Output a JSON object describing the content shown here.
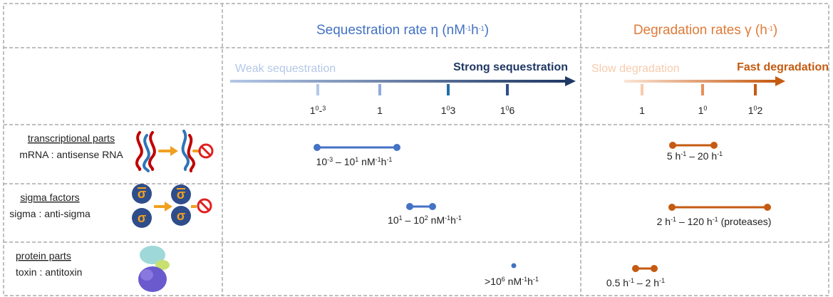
{
  "header": {
    "sequestration_title": [
      [
        "Sequestration rate η (nM",
        "-1"
      ],
      [
        "h",
        "-1"
      ],
      [
        ")"
      ]
    ],
    "degradation_title": [
      [
        "Degradation rates γ (h",
        "-1"
      ],
      [
        ")"
      ]
    ]
  },
  "scales": {
    "sequestration": {
      "weak": "Weak sequestration",
      "strong": "Strong sequestration",
      "ticks": [
        [
          "10",
          "-3"
        ],
        [
          "1"
        ],
        [
          "10",
          "3"
        ],
        [
          "10",
          "6"
        ]
      ]
    },
    "degradation": {
      "slow": "Slow degradation",
      "fast": "Fast degradation",
      "ticks": [
        [
          "1"
        ],
        [
          "10"
        ],
        [
          "10",
          "2"
        ]
      ]
    }
  },
  "rows": [
    {
      "name": "transcriptional parts",
      "pair": "mRNA : antisense RNA",
      "sequestration": [
        [
          "10",
          "-3"
        ],
        [
          " – 10",
          "1"
        ],
        [
          " nM",
          "-1"
        ],
        [
          "h",
          "-1"
        ]
      ],
      "degradation": [
        [
          "5 h",
          "-1"
        ],
        [
          " – 20 h",
          "-1"
        ]
      ]
    },
    {
      "name": "sigma factors",
      "pair": "sigma : anti-sigma",
      "sequestration": [
        [
          "10",
          "1"
        ],
        [
          " – 10",
          "2"
        ],
        [
          " nM",
          "-1"
        ],
        [
          "h",
          "-1"
        ]
      ],
      "degradation": [
        [
          "2 h",
          "-1"
        ],
        [
          " – 120 h",
          "-1"
        ],
        [
          " (proteases)"
        ]
      ]
    },
    {
      "name": "protein parts",
      "pair": "toxin : antitoxin",
      "sequestration": [
        [
          ">10",
          "6"
        ],
        [
          " nM",
          "-1"
        ],
        [
          "h",
          "-1"
        ]
      ],
      "degradation": [
        [
          "0.5 h",
          "-1"
        ],
        [
          " – 2 h",
          "-1"
        ]
      ]
    }
  ]
}
